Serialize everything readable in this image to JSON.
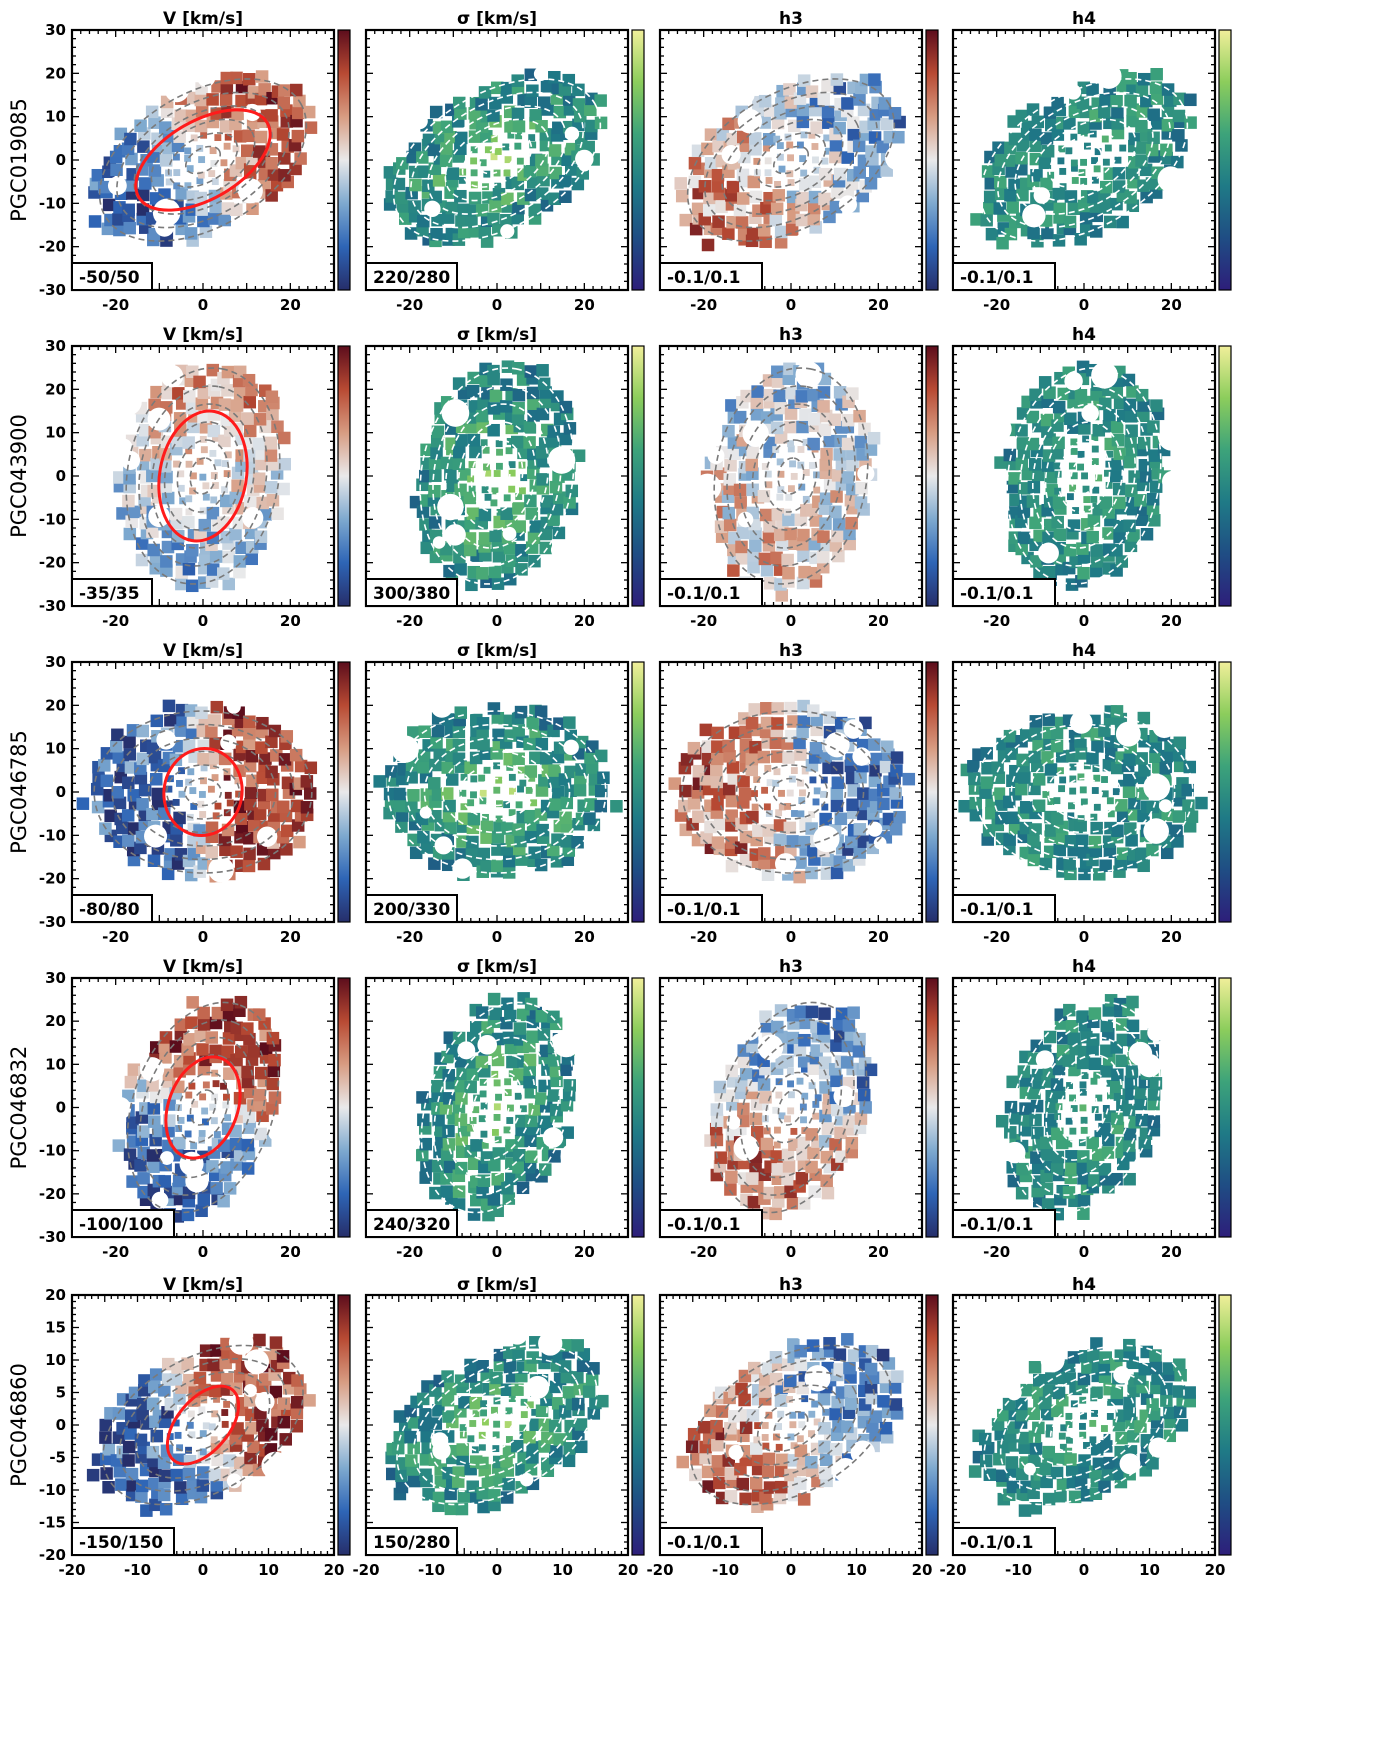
{
  "figure": {
    "column_titles": [
      "V [km/s]",
      "σ [km/s]",
      "h3",
      "h4"
    ],
    "colormaps": {
      "velocity": [
        "#262e6a",
        "#2e65b6",
        "#7ea9cf",
        "#e9e9ea",
        "#d79c82",
        "#b84a33",
        "#5c0d1c"
      ],
      "moment": [
        "#2d1e7a",
        "#1f4d84",
        "#1f7a86",
        "#3da37a",
        "#8ccd5c",
        "#f1ef9a"
      ]
    },
    "kinematic_ellipse_color": "#ff1b1b",
    "rows": [
      {
        "galaxy": "PGC019085",
        "axis_limit": 30,
        "ticks": [
          -30,
          -20,
          -10,
          0,
          10,
          20,
          30
        ],
        "xticks": [
          -20,
          0,
          20
        ],
        "color_ranges": [
          "-50/50",
          "220/280",
          "-0.1/0.1",
          "-0.1/0.1"
        ],
        "maps": {
          "pa_deg": 30,
          "axis_ratio": 0.6,
          "extent": 28,
          "rotation": 0.35
        },
        "kinematic_ellipse": {
          "a": 17,
          "b": 9,
          "pa_deg": 30
        }
      },
      {
        "galaxy": "PGC043900",
        "axis_limit": 30,
        "ticks": [
          -30,
          -20,
          -10,
          0,
          10,
          20,
          30
        ],
        "xticks": [
          -20,
          0,
          20
        ],
        "color_ranges": [
          "-35/35",
          "300/380",
          "-0.1/0.1",
          "-0.1/0.1"
        ],
        "maps": {
          "pa_deg": 80,
          "axis_ratio": 0.7,
          "extent": 27,
          "rotation": 0.1
        },
        "kinematic_ellipse": {
          "a": 15,
          "b": 10,
          "pa_deg": 80
        }
      },
      {
        "galaxy": "PGC046785",
        "axis_limit": 30,
        "ticks": [
          -30,
          -20,
          -10,
          0,
          10,
          20,
          30
        ],
        "xticks": [
          -20,
          0,
          20
        ],
        "color_ranges": [
          "-80/80",
          "200/330",
          "-0.1/0.1",
          "-0.1/0.1"
        ],
        "maps": {
          "pa_deg": 0,
          "axis_ratio": 0.75,
          "extent": 27,
          "rotation": 0.9
        },
        "kinematic_ellipse": {
          "a": 10,
          "b": 9,
          "pa_deg": 80
        }
      },
      {
        "galaxy": "PGC046832",
        "axis_limit": 30,
        "ticks": [
          -30,
          -20,
          -10,
          0,
          10,
          20,
          30
        ],
        "xticks": [
          -20,
          0,
          20
        ],
        "color_ranges": [
          "-100/100",
          "240/320",
          "-0.1/0.1",
          "-0.1/0.1"
        ],
        "maps": {
          "pa_deg": 70,
          "axis_ratio": 0.65,
          "extent": 27,
          "rotation": 0.55
        },
        "kinematic_ellipse": {
          "a": 12,
          "b": 8,
          "pa_deg": 70
        }
      },
      {
        "galaxy": "PGC046860",
        "axis_limit": 20,
        "ticks": [
          -20,
          -15,
          -10,
          -5,
          0,
          5,
          10,
          15,
          20
        ],
        "xticks": [
          -20,
          -10,
          0,
          10,
          20
        ],
        "color_ranges": [
          "-150/150",
          "150/280",
          "-0.1/0.1",
          "-0.1/0.1"
        ],
        "maps": {
          "pa_deg": 30,
          "axis_ratio": 0.62,
          "extent": 18,
          "rotation": 1.0
        },
        "kinematic_ellipse": {
          "a": 7,
          "b": 4,
          "pa_deg": 50
        }
      }
    ]
  }
}
